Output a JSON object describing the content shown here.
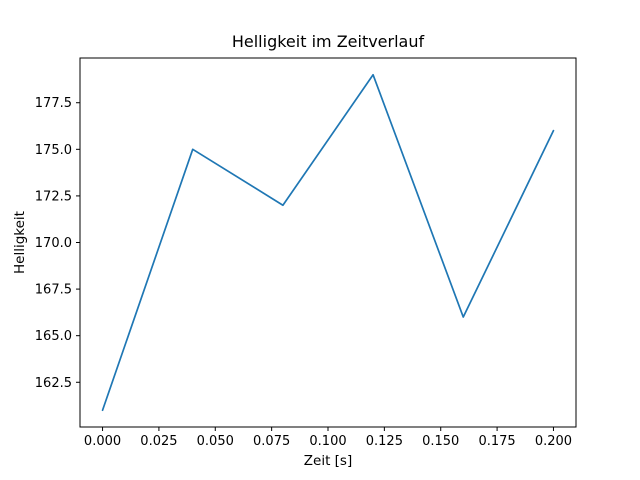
{
  "chart_data": {
    "type": "line",
    "title": "Helligkeit im Zeitverlauf",
    "xlabel": "Zeit [s]",
    "ylabel": "Helligkeit",
    "x": [
      0.0,
      0.04,
      0.08,
      0.12,
      0.16,
      0.2
    ],
    "y": [
      161,
      175,
      172,
      179,
      166,
      176
    ],
    "xlim": [
      -0.01,
      0.21
    ],
    "ylim": [
      160.1,
      179.9
    ],
    "xticks": [
      0.0,
      0.025,
      0.05,
      0.075,
      0.1,
      0.125,
      0.15,
      0.175,
      0.2
    ],
    "xtick_labels": [
      "0.000",
      "0.025",
      "0.050",
      "0.075",
      "0.100",
      "0.125",
      "0.150",
      "0.175",
      "0.200"
    ],
    "yticks": [
      162.5,
      165.0,
      167.5,
      170.0,
      172.5,
      175.0,
      177.5
    ],
    "ytick_labels": [
      "162.5",
      "165.0",
      "167.5",
      "170.0",
      "172.5",
      "175.0",
      "177.5"
    ],
    "line_color": "#1f77b4",
    "axes_color": "#000000",
    "background_color": "#ffffff",
    "grid": false,
    "legend": null
  }
}
